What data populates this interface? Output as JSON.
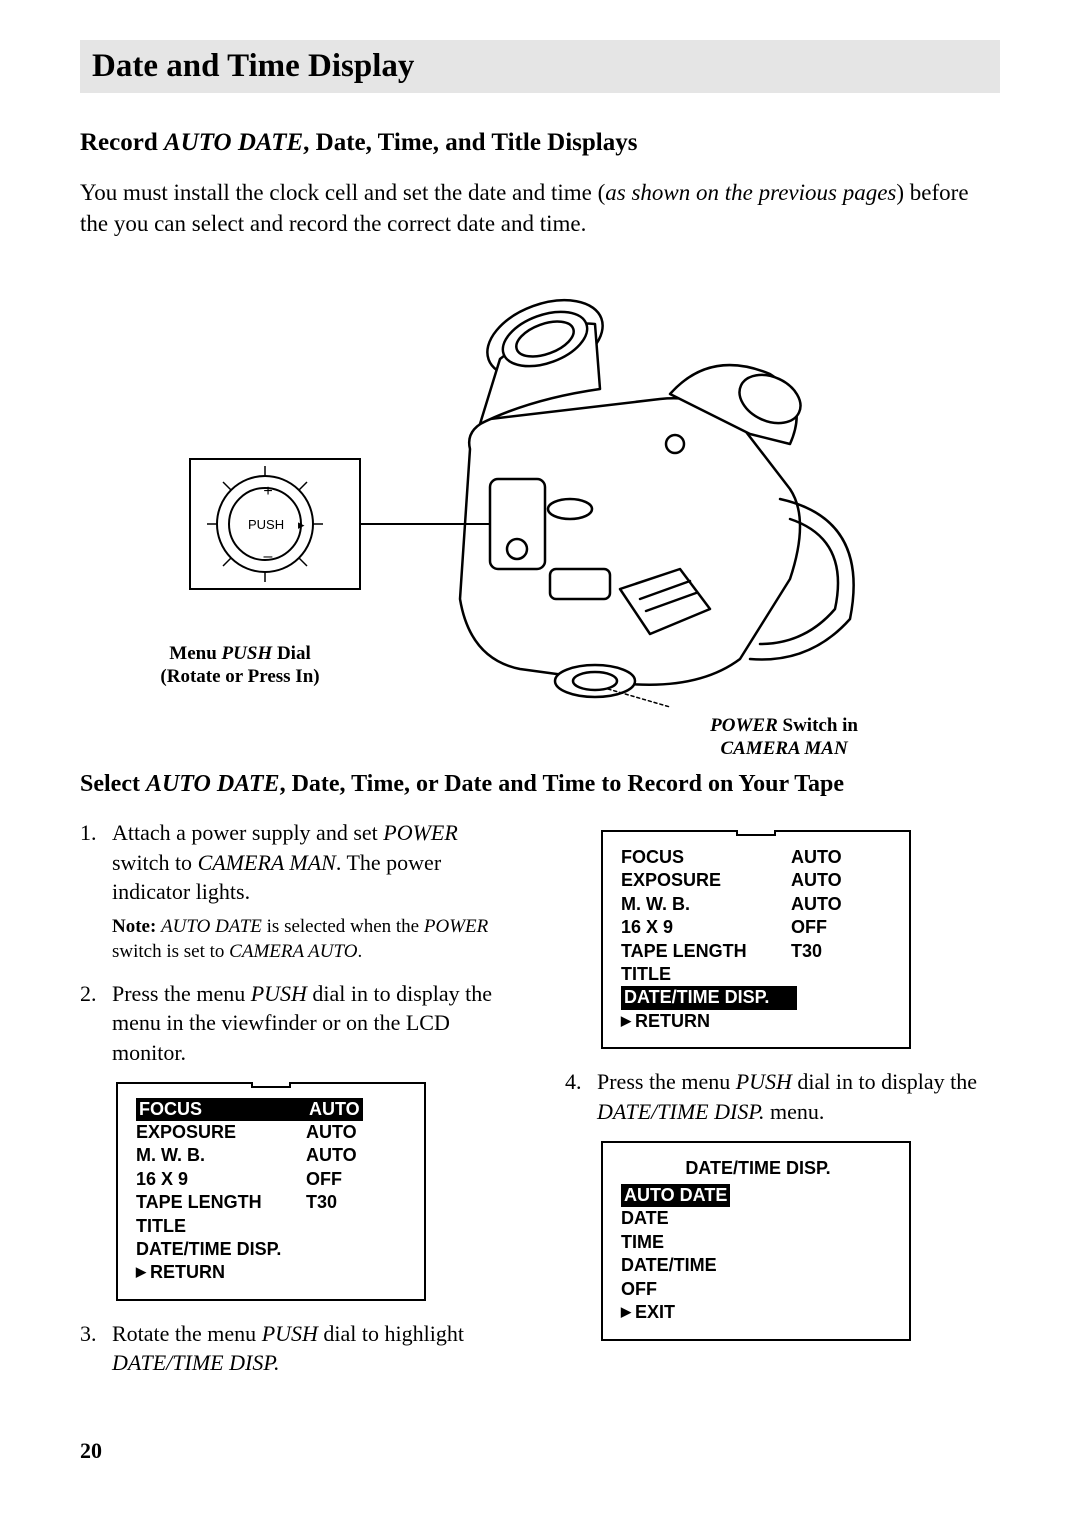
{
  "header": {
    "title": "Date and Time Display"
  },
  "subheading1": {
    "prefix": "Record ",
    "italic": "AUTO DATE",
    "suffix": ", Date, Time, and Title Displays"
  },
  "intro": {
    "part1": "You must install the clock cell and set the date and time (",
    "italic": "as shown on the previous pages",
    "part2": ") before the you can select and record the correct date and time."
  },
  "diagram": {
    "push_label": "PUSH",
    "caption_left_l1_prefix": "Menu ",
    "caption_left_l1_italic": "PUSH",
    "caption_left_l1_suffix": " Dial",
    "caption_left_l2": "(Rotate or Press In)",
    "caption_right_l1_italic": "POWER",
    "caption_right_l1_suffix": " Switch in",
    "caption_right_l2_italic": "CAMERA MAN"
  },
  "subheading2": {
    "prefix": "Select ",
    "italic": "AUTO DATE",
    "suffix": ", Date, Time, or Date and Time to Record on Your Tape"
  },
  "steps": {
    "s1": {
      "t1": "Attach a power supply and set ",
      "i1": "POWER",
      "t2": " switch to ",
      "i2": "CAMERA MAN",
      "t3": ". The power indicator lights."
    },
    "s1note": {
      "b": "Note:  ",
      "i1": "AUTO DATE",
      "t1": " is selected when the ",
      "i2": "POWER",
      "t2": " switch is set to ",
      "i3": "CAMERA AUTO",
      "t3": "."
    },
    "s2": {
      "t1": "Press the menu ",
      "i1": "PUSH",
      "t2": " dial in to display the menu in the viewfinder or on the LCD monitor."
    },
    "s3": {
      "t1": "Rotate the menu ",
      "i1": "PUSH",
      "t2": " dial to highlight ",
      "i2": "DATE/TIME DISP."
    },
    "s4": {
      "t1": "Press the menu ",
      "i1": "PUSH",
      "t2": " dial in to display the ",
      "i2": "DATE/TIME DISP.",
      "t3": " menu."
    }
  },
  "menu1": {
    "rows": [
      {
        "label": "FOCUS",
        "val": "AUTO"
      },
      {
        "label": "EXPOSURE",
        "val": "AUTO"
      },
      {
        "label": "M. W. B.",
        "val": "AUTO"
      },
      {
        "label": "16 X 9",
        "val": "OFF"
      },
      {
        "label": "TAPE LENGTH",
        "val": "T30"
      },
      {
        "label": "TITLE",
        "val": ""
      },
      {
        "label": "DATE/TIME DISP.",
        "val": ""
      }
    ],
    "return": "RETURN",
    "selected_index": 0
  },
  "menu2": {
    "rows": [
      {
        "label": "FOCUS",
        "val": "AUTO"
      },
      {
        "label": "EXPOSURE",
        "val": "AUTO"
      },
      {
        "label": "M. W. B.",
        "val": "AUTO"
      },
      {
        "label": "16 X 9",
        "val": "OFF"
      },
      {
        "label": "TAPE LENGTH",
        "val": "T30"
      },
      {
        "label": "TITLE",
        "val": ""
      },
      {
        "label": "DATE/TIME DISP.",
        "val": ""
      }
    ],
    "return": "RETURN",
    "selected_index": 6
  },
  "menu3": {
    "title": "DATE/TIME DISP.",
    "items": [
      "AUTO DATE",
      "DATE",
      "TIME",
      "DATE/TIME",
      "OFF"
    ],
    "exit": "EXIT",
    "selected_index": 0
  },
  "page_number": "20",
  "colors": {
    "header_bg": "#e5e5e5",
    "text": "#000000",
    "bg": "#ffffff"
  }
}
